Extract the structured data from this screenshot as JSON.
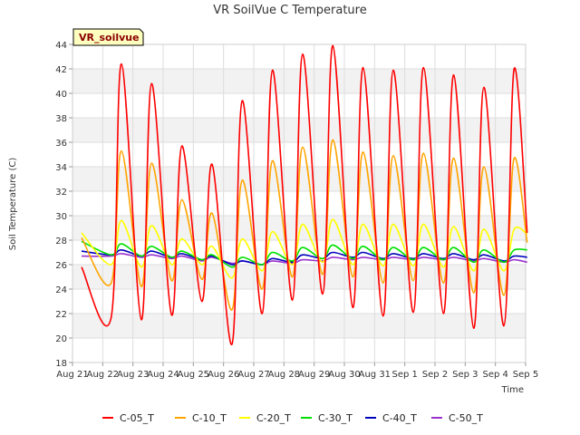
{
  "chart_data": {
    "type": "line",
    "title": "VR SoilVue C Temperature",
    "xlabel": "Time",
    "ylabel": "Soil Temperature (C)",
    "site_label": "VR_soilvue",
    "ylim": [
      18,
      44
    ],
    "yticks": [
      18,
      20,
      22,
      24,
      26,
      28,
      30,
      32,
      34,
      36,
      38,
      40,
      42,
      44
    ],
    "xlim": [
      0,
      15
    ],
    "xtick_labels": [
      "Aug 21",
      "Aug 22",
      "Aug 23",
      "Aug 24",
      "Aug 25",
      "Aug 26",
      "Aug 27",
      "Aug 28",
      "Aug 29",
      "Aug 30",
      "Aug 31",
      "Sep 1",
      "Sep 2",
      "Sep 3",
      "Sep 4",
      "Sep 5"
    ],
    "day_labels": [
      "Aug 22",
      "Aug 23",
      "Aug 24",
      "Aug 25",
      "Aug 26",
      "Aug 27",
      "Aug 28",
      "Aug 29",
      "Aug 30",
      "Aug 31",
      "Sep 1",
      "Sep 2",
      "Sep 3",
      "Sep 4"
    ],
    "grid": true,
    "legend_position": "bottom",
    "series": [
      {
        "name": "C-05_T",
        "color": "#ff0000",
        "start": 25.8,
        "end": 28.6,
        "peaks": [
          42.4,
          40.8,
          35.7,
          34.2,
          39.4,
          41.9,
          43.2,
          43.9,
          42.1,
          41.9,
          42.1,
          41.5,
          40.5,
          42.0
        ],
        "troughs": [
          21.7,
          21.5,
          21.9,
          23.0,
          19.5,
          22.0,
          23.1,
          23.6,
          22.5,
          21.8,
          22.1,
          22.0,
          20.8,
          21.0
        ]
      },
      {
        "name": "C-10_T",
        "color": "#ffa500",
        "start": 28.2,
        "end": 27.8,
        "peaks": [
          35.3,
          34.3,
          31.3,
          30.2,
          32.9,
          34.5,
          35.6,
          36.2,
          35.2,
          34.9,
          35.1,
          34.7,
          34.0,
          34.7
        ],
        "troughs": [
          24.5,
          24.2,
          24.7,
          24.8,
          22.3,
          24.0,
          25.0,
          25.2,
          25.0,
          24.5,
          24.7,
          24.5,
          23.7,
          23.5
        ]
      },
      {
        "name": "C-20_T",
        "color": "#ffff00",
        "start": 28.6,
        "end": 28.5,
        "peaks": [
          29.6,
          29.2,
          28.1,
          27.5,
          28.1,
          28.7,
          29.3,
          29.7,
          29.3,
          29.3,
          29.3,
          29.1,
          28.9,
          28.9
        ],
        "troughs": [
          26.0,
          25.8,
          26.0,
          26.0,
          24.9,
          25.5,
          26.0,
          26.2,
          26.0,
          25.9,
          25.9,
          25.8,
          25.5,
          25.5
        ]
      },
      {
        "name": "C-30_T",
        "color": "#00e000",
        "start": 27.9,
        "end": 27.2,
        "peaks": [
          27.7,
          27.5,
          27.1,
          26.8,
          26.6,
          27.0,
          27.4,
          27.6,
          27.5,
          27.4,
          27.4,
          27.4,
          27.2,
          27.2
        ],
        "troughs": [
          26.8,
          26.7,
          26.6,
          26.4,
          25.8,
          26.0,
          26.3,
          26.5,
          26.5,
          26.4,
          26.4,
          26.4,
          26.2,
          26.2
        ]
      },
      {
        "name": "C-40_T",
        "color": "#0000bb",
        "start": 27.1,
        "end": 26.6,
        "peaks": [
          27.2,
          27.1,
          26.9,
          26.7,
          26.3,
          26.5,
          26.8,
          27.0,
          27.0,
          26.9,
          26.9,
          26.9,
          26.8,
          26.7
        ],
        "troughs": [
          26.8,
          26.7,
          26.6,
          26.4,
          26.0,
          26.0,
          26.2,
          26.5,
          26.6,
          26.5,
          26.5,
          26.5,
          26.4,
          26.3
        ]
      },
      {
        "name": "C-50_T",
        "color": "#9932cc",
        "start": 26.7,
        "end": 26.2,
        "peaks": [
          26.9,
          26.8,
          26.7,
          26.6,
          26.3,
          26.3,
          26.4,
          26.6,
          26.6,
          26.6,
          26.6,
          26.6,
          26.5,
          26.4
        ],
        "troughs": [
          26.7,
          26.6,
          26.5,
          26.3,
          26.1,
          26.0,
          26.1,
          26.3,
          26.4,
          26.4,
          26.4,
          26.4,
          26.3,
          26.2
        ]
      }
    ]
  }
}
